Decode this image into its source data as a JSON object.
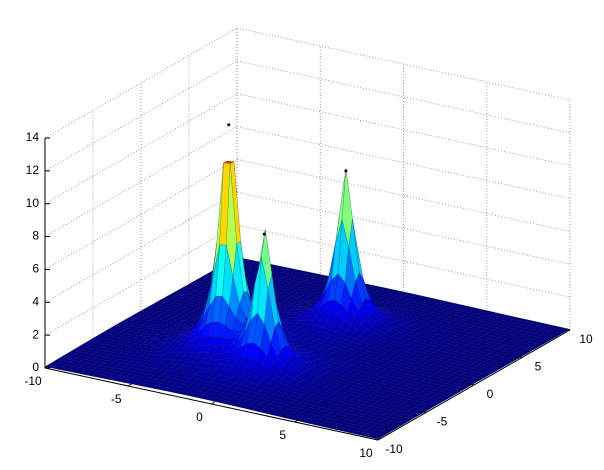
{
  "chart_data": {
    "type": "surface",
    "xlim": [
      -10,
      10
    ],
    "ylim": [
      -10,
      10
    ],
    "zlim": [
      0,
      14
    ],
    "xticks": [
      -10,
      -5,
      0,
      5,
      10
    ],
    "yticks": [
      -10,
      -5,
      0,
      5,
      10
    ],
    "zticks": [
      0,
      2,
      4,
      6,
      8,
      10,
      12,
      14
    ],
    "grid": true,
    "colormap": "jet",
    "peaks": [
      {
        "x": -3,
        "y": -3,
        "z": 14
      },
      {
        "x": 0,
        "y": -4.5,
        "z": 8.5
      },
      {
        "x": 0,
        "y": 4,
        "z": 9.5
      }
    ]
  }
}
